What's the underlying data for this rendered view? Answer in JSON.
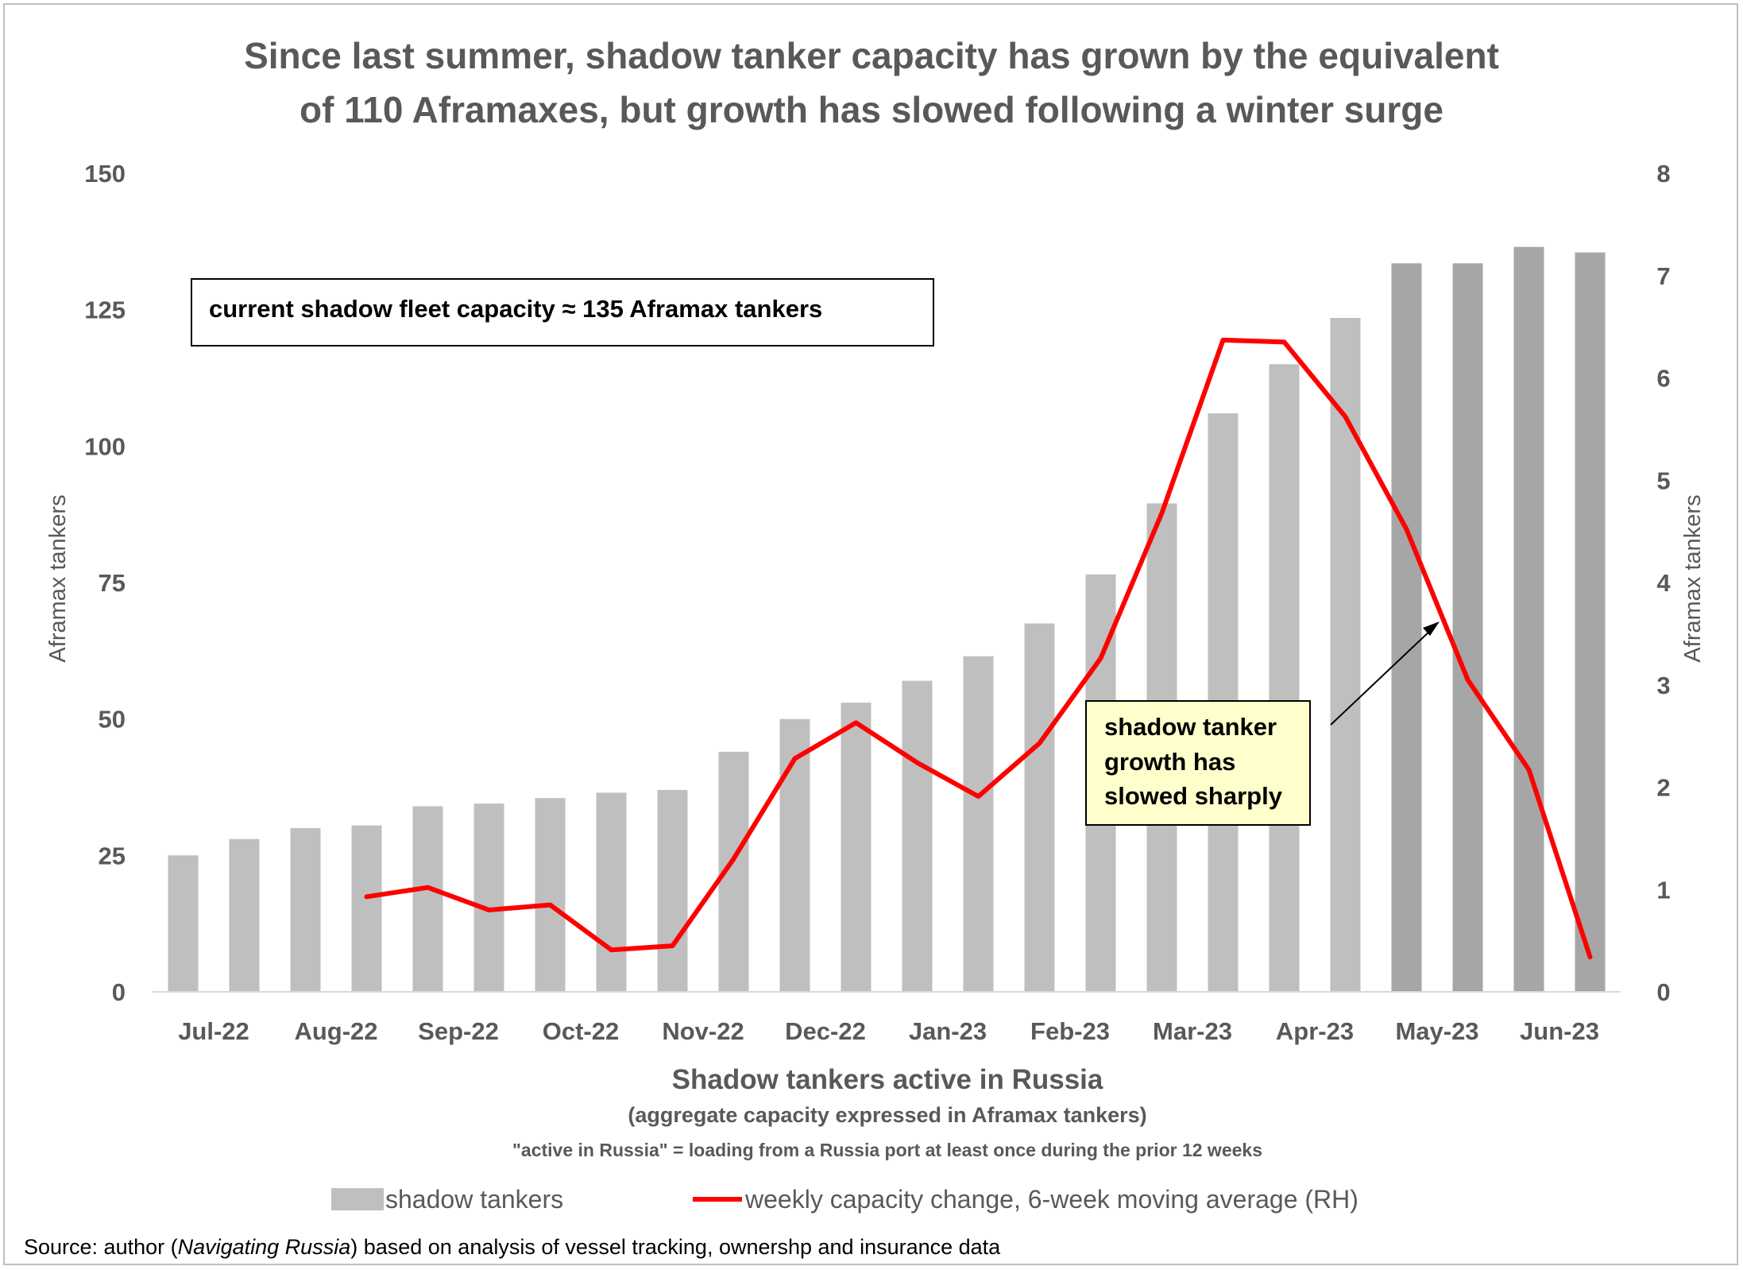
{
  "title_line1": "Since last summer, shadow tanker capacity has grown by the equivalent",
  "title_line2": "of 110 Aframaxes, but growth has slowed following a winter surge",
  "callout_capacity": "current shadow fleet capacity ≈ 135 Aframax tankers",
  "callout_growth": [
    "shadow tanker",
    "growth has",
    "slowed sharply"
  ],
  "x_title": "Shadow tankers active in Russia",
  "x_subtitle": "(aggregate capacity expressed in Aframax tankers)",
  "x_note": "\"active in Russia\" = loading from a Russia port at least once during the prior 12 weeks",
  "source_prefix": "Source: author (",
  "source_italic": "Navigating Russia",
  "source_suffix": ") based on analysis of vessel tracking, ownershp and insurance data",
  "legend": {
    "bars": "shadow tankers",
    "line": "weekly capacity change, 6-week moving average (RH)"
  },
  "colors": {
    "bar_light": "#bfbfbf",
    "bar_dark": "#a6a6a6",
    "line": "#ff0000",
    "callout_fill": "#ffffcc"
  },
  "chart_data": {
    "type": "bar",
    "x_tick_labels": [
      "Jul-22",
      "Aug-22",
      "Sep-22",
      "Oct-22",
      "Nov-22",
      "Dec-22",
      "Jan-23",
      "Feb-23",
      "Mar-23",
      "Apr-23",
      "May-23",
      "Jun-23"
    ],
    "ylabel": "Aframax tankers",
    "y2label": "Aframax tankers",
    "ylim": [
      0,
      150
    ],
    "yticks": [
      0,
      25,
      50,
      75,
      100,
      125,
      150
    ],
    "y2lim": [
      0,
      8
    ],
    "y2ticks": [
      0,
      1,
      2,
      3,
      4,
      5,
      6,
      7,
      8
    ],
    "series": [
      {
        "name": "shadow tankers",
        "axis": "left",
        "type": "bar",
        "values": [
          25,
          28,
          30,
          30.5,
          34,
          34.5,
          35.5,
          36.5,
          37,
          44,
          50,
          53,
          57,
          61.5,
          67.5,
          76.5,
          89.5,
          106,
          115,
          123.5,
          133.5,
          133.5,
          136.5,
          135.5
        ],
        "dark_from_index": 20
      },
      {
        "name": "weekly capacity change, 6-week moving average (RH)",
        "axis": "right",
        "type": "line",
        "values": [
          null,
          null,
          null,
          0.93,
          1.02,
          0.8,
          0.85,
          0.41,
          0.45,
          1.3,
          2.28,
          2.63,
          2.24,
          1.91,
          2.43,
          3.26,
          4.68,
          6.37,
          6.35,
          5.62,
          4.52,
          3.05,
          2.17,
          0.34
        ]
      }
    ]
  }
}
